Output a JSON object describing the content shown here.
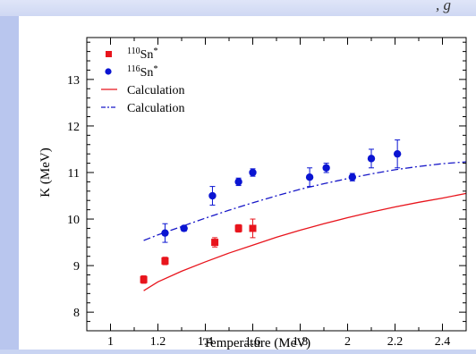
{
  "top_fragment_text": ", g",
  "chart_data": {
    "type": "scatter",
    "xlabel": "Temperature (MeV)",
    "ylabel": "K (MeV)",
    "xlim": [
      0.9,
      2.5
    ],
    "ylim": [
      7.6,
      13.9
    ],
    "x_major_ticks": [
      1,
      1.2,
      1.4,
      1.6,
      1.8,
      2,
      2.2,
      2.4
    ],
    "x_tick_labels": [
      "1",
      "1.2",
      "1.4",
      "1.6",
      "1.8",
      "2",
      "2.2",
      "2.4"
    ],
    "y_major_ticks": [
      8,
      9,
      10,
      11,
      12,
      13
    ],
    "y_tick_labels": [
      "8",
      "9",
      "10",
      "11",
      "12",
      "13"
    ],
    "grid": false,
    "legend_position": "top-left",
    "legend": [
      {
        "mass": "110",
        "element": "Sn",
        "suffix": "*",
        "marker": "square",
        "color": "#e8141c"
      },
      {
        "mass": "116",
        "element": "Sn",
        "suffix": "*",
        "marker": "circle",
        "color": "#0a14d2"
      },
      {
        "label": "Calculation",
        "line": "solid",
        "color": "#e8141c"
      },
      {
        "label": "Calculation",
        "line": "dash-dot",
        "color": "#1818c8"
      }
    ],
    "series": [
      {
        "kind": "points",
        "marker": "square",
        "color": "#e8141c",
        "points": [
          {
            "x": 1.14,
            "y": 8.7,
            "err": 0.08
          },
          {
            "x": 1.23,
            "y": 9.1,
            "err": 0.08
          },
          {
            "x": 1.44,
            "y": 9.5,
            "err": 0.1
          },
          {
            "x": 1.54,
            "y": 9.8,
            "err": 0.08
          },
          {
            "x": 1.6,
            "y": 9.8,
            "err": 0.2
          }
        ]
      },
      {
        "kind": "points",
        "marker": "circle",
        "color": "#0a14d2",
        "points": [
          {
            "x": 1.23,
            "y": 9.7,
            "err": 0.2
          },
          {
            "x": 1.31,
            "y": 9.8,
            "err": 0.06
          },
          {
            "x": 1.43,
            "y": 10.5,
            "err": 0.2
          },
          {
            "x": 1.54,
            "y": 10.8,
            "err": 0.08
          },
          {
            "x": 1.6,
            "y": 11.0,
            "err": 0.08
          },
          {
            "x": 1.84,
            "y": 10.9,
            "err": 0.2
          },
          {
            "x": 1.91,
            "y": 11.1,
            "err": 0.1
          },
          {
            "x": 2.02,
            "y": 10.9,
            "err": 0.08
          },
          {
            "x": 2.1,
            "y": 11.3,
            "err": 0.2
          },
          {
            "x": 2.21,
            "y": 11.4,
            "err": 0.3
          }
        ]
      },
      {
        "kind": "line",
        "style": "solid",
        "color": "#e8141c",
        "x": [
          1.14,
          1.2,
          1.3,
          1.4,
          1.5,
          1.6,
          1.7,
          1.8,
          1.9,
          2.0,
          2.1,
          2.2,
          2.3,
          2.4,
          2.5
        ],
        "y": [
          8.46,
          8.65,
          8.88,
          9.08,
          9.27,
          9.44,
          9.61,
          9.76,
          9.9,
          10.03,
          10.15,
          10.26,
          10.36,
          10.45,
          10.55
        ]
      },
      {
        "kind": "line",
        "style": "dash-dot",
        "color": "#1818c8",
        "x": [
          1.14,
          1.2,
          1.3,
          1.4,
          1.5,
          1.6,
          1.7,
          1.8,
          1.9,
          2.0,
          2.1,
          2.2,
          2.3,
          2.4,
          2.5
        ],
        "y": [
          9.54,
          9.66,
          9.84,
          10.02,
          10.19,
          10.35,
          10.5,
          10.64,
          10.76,
          10.87,
          10.97,
          11.06,
          11.13,
          11.19,
          11.23
        ]
      }
    ]
  }
}
